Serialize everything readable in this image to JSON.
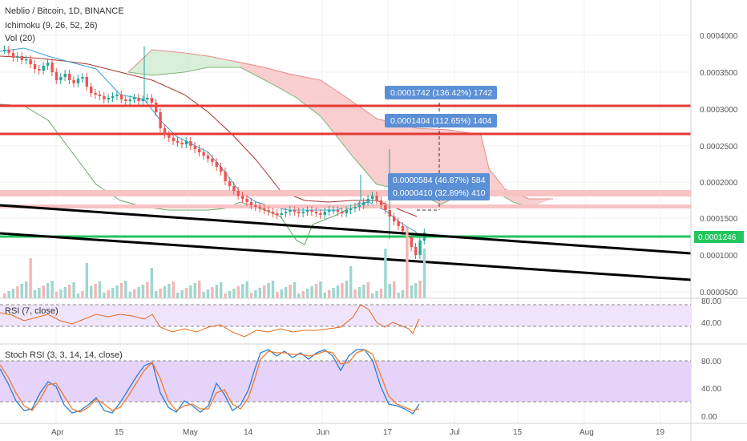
{
  "header": {
    "symbol_line": "Neblio / Bitcoin, 1D, BINANCE",
    "ichimoku_label": "Ichimoku (9, 26, 52, 26)",
    "volume_label": "Vol (20)",
    "rsi_label": "RSI (7, close)",
    "stoch_label": "Stoch RSI (3, 3, 14, 14, close)"
  },
  "price_axis": {
    "ticks": [
      "0.0004000",
      "0.0003500",
      "0.0003000",
      "0.0002500",
      "0.0002000",
      "0.0001500",
      "0.0001000",
      "0.0000500"
    ],
    "current_price": "0.0001246"
  },
  "rsi_axis": {
    "ticks": [
      "80.00",
      "40.00"
    ]
  },
  "stoch_axis": {
    "ticks": [
      "80.00",
      "40.00",
      "0.00"
    ]
  },
  "time_axis": {
    "labels": [
      "Apr",
      "15",
      "May",
      "14",
      "Jun",
      "17",
      "Jul",
      "15",
      "Aug",
      "19"
    ]
  },
  "measure_boxes": [
    {
      "text": "0.0001742 (136.42%) 1742"
    },
    {
      "text": "0.0001404 (112.65%) 1404"
    },
    {
      "text": "0.0000584 (46.87%) 584"
    },
    {
      "text": "0.0000410 (32.89%) 410"
    }
  ],
  "colors": {
    "up": "#26a69a",
    "down": "#ef5350",
    "resistance": "#e53935",
    "resistance_light": "#f8bbbb",
    "support_green": "#22c55e",
    "cloud_red": "#f7c6c6",
    "cloud_green": "#c8e6c9",
    "box_blue": "#5b8fd6",
    "rsi_band": "#efe4fb",
    "stoch_band": "#e6d3fa"
  },
  "chart_data": {
    "type": "candlestick",
    "title": "Neblio / Bitcoin, 1D, BINANCE",
    "ylim": [
      4e-05,
      0.00043
    ],
    "price_series": [
      {
        "x": "Mar 24",
        "y": 0.00037
      },
      {
        "x": "Apr 1",
        "y": 0.00036
      },
      {
        "x": "Apr 8",
        "y": 0.00034
      },
      {
        "x": "Apr 15",
        "y": 0.00031
      },
      {
        "x": "Apr 22",
        "y": 0.00031
      },
      {
        "x": "Apr 29",
        "y": 0.00025
      },
      {
        "x": "May 6",
        "y": 0.00024
      },
      {
        "x": "May 13",
        "y": 0.00017
      },
      {
        "x": "May 20",
        "y": 0.00016
      },
      {
        "x": "May 27",
        "y": 0.00016
      },
      {
        "x": "Jun 3",
        "y": 0.00016
      },
      {
        "x": "Jun 10",
        "y": 0.00017
      },
      {
        "x": "Jun 14",
        "y": 0.000135
      },
      {
        "x": "Jun 18",
        "y": 0.00011
      },
      {
        "x": "Jun 20",
        "y": 0.0001246
      }
    ],
    "horizontal_levels": [
      0.000302,
      0.000265,
      0.000183,
      0.000165,
      0.0001246
    ],
    "measurements": [
      {
        "value": 0.0001742,
        "percent": 136.42,
        "ticks": 1742
      },
      {
        "value": 0.0001404,
        "percent": 112.65,
        "ticks": 1404
      },
      {
        "value": 5.84e-05,
        "percent": 46.87,
        "ticks": 584
      },
      {
        "value": 4.1e-05,
        "percent": 32.89,
        "ticks": 410
      }
    ],
    "rsi": {
      "ylim": [
        0,
        100
      ],
      "bands": [
        30,
        70
      ]
    },
    "stoch_rsi": {
      "ylim": [
        0,
        100
      ],
      "bands": [
        20,
        80
      ]
    },
    "grid": true
  }
}
